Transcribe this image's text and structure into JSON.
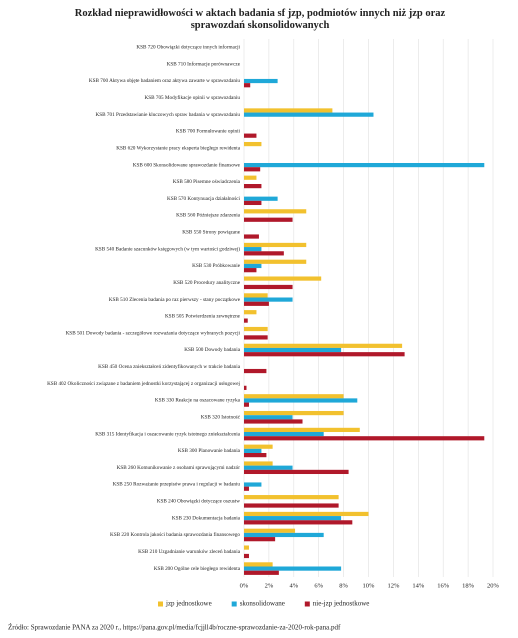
{
  "chart_data": {
    "type": "barh",
    "title": "Rozkład nieprawidłowości w aktach badania sf jzp, podmiotów innych niż jzp oraz sprawozdań skonsolidowanych",
    "categories": [
      "KSB 720 Obowiązki dotyczące innych informacji",
      "KSB 710 Informacje porównawcze",
      "KSB 700 Aktywa objęte badaniem oraz aktywa zawarte w sprawozdaniu",
      "KSB 705 Modyfikacje opinii w sprawozdaniu",
      "KSB 701 Przedstawianie kluczowych spraw badania w sprawozdaniu",
      "KSB 700 Formułowanie opinii",
      "KSB 620 Wykorzystanie pracy eksperta biegłego rewidenta",
      "KSB 600 Skonsolidowane sprawozdanie finansowe",
      "KSB 580 Pisemne oświadczenia",
      "KSB 570 Kontynuacja działalności",
      "KSB 560 Późniejsze zdarzenia",
      "KSB 550 Strony powiązane",
      "KSB 540 Badanie szacunków księgowych (w tym wartości godziwej)",
      "KSB 530 Próbkowanie",
      "KSB 520 Procedury analityczne",
      "KSB 510 Zlecenia badania po raz pierwszy - stany początkowe",
      "KSB 505 Potwierdzenia zewnętrzne",
      "KSB 501 Dowody badania - szczegółowe rozważania dotyczące wybranych pozycji",
      "KSB 500 Dowody badania",
      "KSB 450 Ocena zniekształceń zidentyfikowanych w trakcie badania",
      "KSB 402 Okoliczności związane z badaniem jednostki korzystającej z organizacji usługowej",
      "KSB 330 Reakcje na oszacowane ryzyka",
      "KSB 320 Istotność",
      "KSB 315 Identyfikacja i oszacowanie ryzyk istotnego zniekształcenia",
      "KSB 300 Planowanie badania",
      "KSB 260 Komunikowanie z osobami sprawującymi nadzór",
      "KSB 250 Rozważanie przepisów prawa i regulacji w badaniu",
      "KSB 240 Obowiązki dotyczące oszustw",
      "KSB 230 Dokumentacja badania",
      "KSB 220 Kontrola jakości badania sprawozdania finansowego",
      "KSB 210 Uzgadnianie warunków zleceń badania",
      "KSB 200 Ogólne cele biegłego rewidenta"
    ],
    "series": [
      {
        "name": "jzp jednostkowe",
        "color": "#f2c12e",
        "values": [
          0,
          0,
          0,
          0,
          7.1,
          0,
          1.4,
          0,
          1.0,
          0,
          5.0,
          0,
          5.0,
          5.0,
          6.2,
          1.9,
          1.0,
          1.9,
          12.7,
          0,
          0,
          8.0,
          8.0,
          9.3,
          2.3,
          2.3,
          0,
          7.6,
          10.0,
          4.1,
          0.4,
          2.3
        ]
      },
      {
        "name": "skonsolidowane",
        "color": "#1fa8d8",
        "values": [
          0,
          0,
          2.7,
          0,
          10.4,
          0,
          0,
          19.3,
          0,
          2.7,
          0,
          0,
          1.4,
          1.4,
          0,
          3.9,
          0,
          0,
          7.8,
          0,
          0,
          9.1,
          3.9,
          6.4,
          1.4,
          3.9,
          1.4,
          0,
          7.8,
          6.4,
          0,
          7.8
        ]
      },
      {
        "name": "nie-jzp jednostkowe",
        "color": "#b0182a",
        "values": [
          0,
          0,
          0.5,
          0,
          0,
          1.0,
          0,
          1.3,
          1.4,
          1.4,
          3.9,
          1.2,
          3.2,
          1.0,
          3.9,
          2.0,
          0.3,
          1.9,
          12.9,
          1.8,
          0.2,
          0.4,
          4.7,
          19.3,
          1.8,
          8.4,
          0.4,
          7.6,
          8.7,
          2.5,
          0.4,
          2.8
        ]
      }
    ],
    "xlim": [
      0,
      20
    ],
    "xticks": [
      {
        "value": 0,
        "label": "0%"
      },
      {
        "value": 2,
        "label": "2%"
      },
      {
        "value": 4,
        "label": "4%"
      },
      {
        "value": 6,
        "label": "6%"
      },
      {
        "value": 8,
        "label": "8%"
      },
      {
        "value": 10,
        "label": "10%"
      },
      {
        "value": 12,
        "label": "12%"
      },
      {
        "value": 14,
        "label": "14%"
      },
      {
        "value": 16,
        "label": "16%"
      },
      {
        "value": 18,
        "label": "18%"
      },
      {
        "value": 20,
        "label": "20%"
      }
    ],
    "grid": true,
    "legend": "bottom",
    "source": "Źródło: Sprawozdanie PANA za 2020 r., https://pana.gov.pl/media/fcjjll4b/roczne-sprawozdanie-za-2020-rok-pana.pdf"
  }
}
